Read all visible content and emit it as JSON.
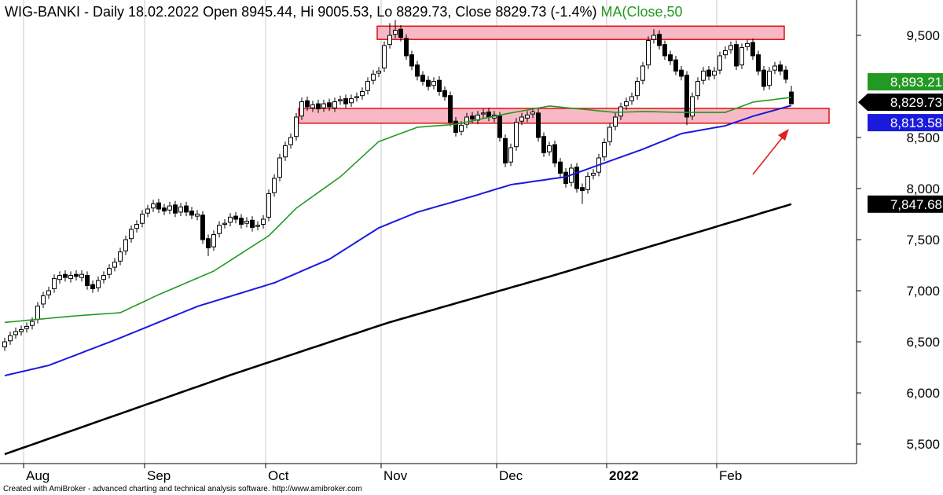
{
  "chart_data": {
    "type": "candlestick",
    "title": "WIG-BANKI - Daily 18.02.2022 Open 8945.44, Hi 9005.53, Lo 8829.73, Close 8829.73 (-1.4%) ",
    "title_ma": "MA(Close,50",
    "footer": "Created with AmiBroker - advanced charting and technical analysis software. http://www.amibroker.com",
    "categories": [
      null,
      null,
      null,
      null,
      "Aug",
      null,
      null,
      null,
      null,
      null,
      null,
      null,
      null,
      null,
      null,
      null,
      null,
      null,
      null,
      null,
      null,
      null,
      null,
      null,
      null,
      null,
      "Sep",
      null,
      null,
      null,
      null,
      null,
      null,
      null,
      null,
      null,
      null,
      null,
      null,
      null,
      null,
      null,
      null,
      null,
      null,
      null,
      null,
      null,
      "Oct",
      null,
      null,
      null,
      null,
      null,
      null,
      null,
      null,
      null,
      null,
      null,
      null,
      null,
      null,
      null,
      null,
      null,
      null,
      null,
      null,
      "Nov",
      null,
      null,
      null,
      null,
      null,
      null,
      null,
      null,
      null,
      null,
      null,
      null,
      null,
      null,
      null,
      null,
      null,
      null,
      null,
      null,
      "Dec",
      null,
      null,
      null,
      null,
      null,
      null,
      null,
      null,
      null,
      null,
      null,
      null,
      null,
      null,
      null,
      null,
      null,
      null,
      null,
      "2022",
      null,
      null,
      null,
      null,
      null,
      null,
      null,
      null,
      null,
      null,
      null,
      null,
      null,
      null,
      null,
      null,
      null,
      null,
      null,
      "Feb",
      null,
      null,
      null,
      null,
      null,
      null,
      null,
      null,
      null,
      null,
      null,
      null,
      null
    ],
    "open": [
      6450,
      6510,
      6570,
      6600,
      6630,
      6660,
      6720,
      6870,
      6960,
      7020,
      7110,
      7160,
      7120,
      7160,
      7130,
      7150,
      7060,
      7030,
      7110,
      7160,
      7230,
      7290,
      7390,
      7510,
      7610,
      7660,
      7760,
      7810,
      7860,
      7810,
      7790,
      7840,
      7770,
      7830,
      7780,
      7730,
      7740,
      7510,
      7430,
      7560,
      7650,
      7670,
      7730,
      7710,
      7660,
      7690,
      7630,
      7650,
      7720,
      7960,
      8110,
      8310,
      8430,
      8510,
      8710,
      8860,
      8790,
      8830,
      8790,
      8840,
      8790,
      8860,
      8880,
      8840,
      8890,
      8910,
      8960,
      9060,
      9130,
      9180,
      9410,
      9510,
      9560,
      9470,
      9310,
      9210,
      9110,
      9060,
      9010,
      9060,
      8960,
      8910,
      8660,
      8560,
      8630,
      8710,
      8670,
      8730,
      8750,
      8690,
      8710,
      8490,
      8260,
      8410,
      8660,
      8690,
      8730,
      8740,
      8510,
      8360,
      8430,
      8260,
      8160,
      8060,
      8210,
      8010,
      7990,
      8130,
      8160,
      8310,
      8460,
      8610,
      8710,
      8810,
      8860,
      8910,
      9060,
      9210,
      9460,
      9510,
      9410,
      9310,
      9260,
      9160,
      9110,
      8710,
      8910,
      9060,
      9160,
      9110,
      9160,
      9310,
      9360,
      9410,
      9210,
      9390,
      9430,
      9310,
      9160,
      9010,
      9160,
      9210,
      9160,
      8945.44
    ],
    "high": [
      6540,
      6600,
      6640,
      6660,
      6690,
      6740,
      6890,
      6990,
      7040,
      7160,
      7190,
      7200,
      7190,
      7200,
      7200,
      7190,
      7100,
      7140,
      7190,
      7260,
      7320,
      7420,
      7540,
      7640,
      7690,
      7790,
      7840,
      7890,
      7900,
      7850,
      7870,
      7880,
      7860,
      7870,
      7820,
      7790,
      7780,
      7550,
      7590,
      7680,
      7700,
      7760,
      7770,
      7750,
      7720,
      7730,
      7680,
      7740,
      7990,
      8140,
      8340,
      8460,
      8540,
      8740,
      8890,
      8900,
      8860,
      8870,
      8870,
      8880,
      8890,
      8910,
      8920,
      8920,
      8940,
      8990,
      9090,
      9160,
      9190,
      9440,
      9620,
      9650,
      9600,
      9510,
      9350,
      9250,
      9150,
      9100,
      9090,
      9100,
      9000,
      8950,
      8700,
      8660,
      8740,
      8750,
      8760,
      8780,
      8790,
      8760,
      8750,
      8530,
      8440,
      8690,
      8740,
      8760,
      8790,
      8780,
      8550,
      8460,
      8470,
      8300,
      8200,
      8240,
      8250,
      8050,
      8160,
      8190,
      8340,
      8490,
      8640,
      8740,
      8840,
      8890,
      8940,
      9090,
      9240,
      9490,
      9560,
      9550,
      9450,
      9350,
      9300,
      9200,
      9150,
      8940,
      9090,
      9190,
      9200,
      9190,
      9340,
      9390,
      9440,
      9450,
      9420,
      9460,
      9470,
      9350,
      9200,
      9190,
      9240,
      9250,
      9200,
      9005.53
    ],
    "low": [
      6410,
      6470,
      6530,
      6560,
      6590,
      6620,
      6680,
      6830,
      6920,
      6980,
      7070,
      7090,
      7080,
      7100,
      7090,
      7010,
      6980,
      6990,
      7070,
      7120,
      7190,
      7250,
      7350,
      7470,
      7570,
      7620,
      7720,
      7770,
      7760,
      7740,
      7750,
      7720,
      7730,
      7730,
      7700,
      7690,
      7460,
      7340,
      7390,
      7520,
      7610,
      7630,
      7660,
      7610,
      7620,
      7580,
      7590,
      7610,
      7680,
      7920,
      8070,
      8270,
      8390,
      8470,
      8670,
      8760,
      8750,
      8740,
      8750,
      8760,
      8750,
      8820,
      8790,
      8800,
      8850,
      8870,
      8920,
      9020,
      9090,
      9140,
      9370,
      9470,
      9440,
      9260,
      9160,
      9060,
      9010,
      8960,
      8970,
      8910,
      8860,
      8610,
      8510,
      8520,
      8590,
      8640,
      8630,
      8690,
      8660,
      8650,
      8460,
      8210,
      8220,
      8370,
      8620,
      8650,
      8690,
      8460,
      8310,
      8320,
      8210,
      8110,
      8010,
      8020,
      7960,
      7850,
      7950,
      8090,
      8120,
      8270,
      8420,
      8570,
      8670,
      8770,
      8820,
      8870,
      9020,
      9170,
      9420,
      9360,
      9260,
      9210,
      9110,
      9060,
      8620,
      8670,
      8870,
      9020,
      9060,
      9070,
      9120,
      9270,
      9320,
      9160,
      9170,
      9350,
      9260,
      9110,
      8960,
      8970,
      9120,
      9110,
      9030,
      8829.73
    ],
    "close": [
      6500,
      6560,
      6600,
      6620,
      6650,
      6700,
      6850,
      6950,
      7000,
      7120,
      7150,
      7130,
      7150,
      7140,
      7160,
      7050,
      7020,
      7100,
      7150,
      7220,
      7280,
      7380,
      7500,
      7600,
      7650,
      7750,
      7800,
      7850,
      7800,
      7780,
      7830,
      7760,
      7820,
      7770,
      7740,
      7750,
      7500,
      7420,
      7550,
      7640,
      7660,
      7720,
      7700,
      7650,
      7680,
      7620,
      7640,
      7700,
      7950,
      8100,
      8300,
      8420,
      8500,
      8700,
      8850,
      8800,
      8820,
      8780,
      8830,
      8800,
      8850,
      8870,
      8830,
      8880,
      8900,
      8950,
      9050,
      9120,
      9150,
      9400,
      9500,
      9550,
      9480,
      9300,
      9200,
      9100,
      9050,
      9000,
      9050,
      8950,
      8900,
      8650,
      8550,
      8620,
      8700,
      8680,
      8720,
      8740,
      8700,
      8720,
      8500,
      8250,
      8400,
      8650,
      8700,
      8720,
      8750,
      8500,
      8350,
      8420,
      8250,
      8150,
      8050,
      8200,
      8000,
      7980,
      8120,
      8150,
      8300,
      8450,
      8600,
      8700,
      8800,
      8850,
      8900,
      9050,
      9200,
      9450,
      9500,
      9400,
      9300,
      9250,
      9150,
      9100,
      8700,
      8900,
      9050,
      9150,
      9100,
      9150,
      9300,
      9350,
      9400,
      9200,
      9380,
      9420,
      9300,
      9150,
      9000,
      9150,
      9200,
      9150,
      9070,
      8829.73
    ],
    "close_label": {
      "value": 8829.73,
      "label": "8,829.73"
    },
    "series": [
      {
        "color": "#229922",
        "width": 1.6,
        "end_label": {
          "value": 8893.21,
          "label": "8,893.21"
        },
        "values": [
          6690,
          6695,
          6700,
          6705,
          6710,
          6715,
          6720,
          6725,
          6730,
          6735,
          6740,
          6745,
          6750,
          6754,
          6758,
          6762,
          6766,
          6770,
          6774,
          6777,
          6781,
          6785,
          6810,
          6836,
          6861,
          6886,
          6911,
          6937,
          6962,
          6985,
          7008,
          7031,
          7054,
          7077,
          7100,
          7123,
          7146,
          7169,
          7192,
          7227,
          7261,
          7296,
          7330,
          7365,
          7400,
          7434,
          7469,
          7503,
          7538,
          7592,
          7646,
          7700,
          7754,
          7808,
          7846,
          7885,
          7923,
          7962,
          8000,
          8038,
          8077,
          8115,
          8164,
          8214,
          8263,
          8312,
          8362,
          8411,
          8460,
          8480,
          8500,
          8520,
          8540,
          8560,
          8580,
          8600,
          8604,
          8609,
          8613,
          8617,
          8621,
          8626,
          8630,
          8641,
          8652,
          8663,
          8674,
          8686,
          8697,
          8708,
          8719,
          8730,
          8740,
          8750,
          8759,
          8769,
          8779,
          8789,
          8798,
          8808,
          8803,
          8798,
          8792,
          8787,
          8782,
          8777,
          8772,
          8767,
          8761,
          8756,
          8751,
          8746,
          8748,
          8749,
          8751,
          8752,
          8754,
          8753,
          8752,
          8751,
          8749,
          8748,
          8747,
          8746,
          8746,
          8746,
          8746,
          8746,
          8746,
          8746,
          8746,
          8746,
          8766,
          8786,
          8806,
          8826,
          8846,
          8853,
          8860,
          8866,
          8873,
          8880,
          8886,
          8893.21
        ]
      },
      {
        "color": "#1a1adc",
        "width": 2,
        "end_label": {
          "value": 8813.58,
          "label": "8,813.58"
        },
        "values": [
          6169,
          6182,
          6194,
          6207,
          6219,
          6232,
          6244,
          6257,
          6269,
          6290,
          6310,
          6331,
          6352,
          6372,
          6393,
          6414,
          6434,
          6455,
          6476,
          6496,
          6517,
          6538,
          6560,
          6582,
          6604,
          6626,
          6648,
          6670,
          6692,
          6714,
          6736,
          6758,
          6780,
          6802,
          6824,
          6846,
          6863,
          6879,
          6896,
          6912,
          6929,
          6945,
          6962,
          6978,
          6995,
          7011,
          7028,
          7044,
          7061,
          7077,
          7100,
          7123,
          7146,
          7169,
          7193,
          7216,
          7239,
          7262,
          7285,
          7308,
          7342,
          7376,
          7410,
          7444,
          7479,
          7513,
          7547,
          7581,
          7615,
          7637,
          7659,
          7681,
          7703,
          7725,
          7747,
          7769,
          7784,
          7800,
          7815,
          7831,
          7846,
          7861,
          7877,
          7892,
          7908,
          7923,
          7939,
          7956,
          7972,
          7989,
          8005,
          8021,
          8038,
          8046,
          8053,
          8061,
          8069,
          8077,
          8084,
          8092,
          8100,
          8107,
          8115,
          8134,
          8154,
          8173,
          8192,
          8212,
          8231,
          8250,
          8270,
          8289,
          8308,
          8327,
          8347,
          8366,
          8385,
          8407,
          8429,
          8451,
          8472,
          8494,
          8516,
          8538,
          8548,
          8557,
          8567,
          8577,
          8586,
          8596,
          8605,
          8615,
          8634,
          8652,
          8671,
          8689,
          8708,
          8723,
          8738,
          8753,
          8768,
          8783,
          8798,
          8813.58
        ]
      },
      {
        "color": "#000000",
        "width": 2.6,
        "end_label": {
          "value": 7847.68,
          "label": "7,847.68"
        },
        "values": [
          5400,
          5419,
          5438,
          5457,
          5475,
          5494,
          5513,
          5532,
          5551,
          5570,
          5589,
          5608,
          5626,
          5645,
          5664,
          5683,
          5702,
          5721,
          5740,
          5759,
          5777,
          5796,
          5815,
          5834,
          5853,
          5872,
          5891,
          5909,
          5928,
          5947,
          5966,
          5985,
          6004,
          6023,
          6042,
          6060,
          6079,
          6098,
          6117,
          6136,
          6155,
          6174,
          6192,
          6210,
          6228,
          6246,
          6264,
          6282,
          6299,
          6317,
          6335,
          6353,
          6371,
          6389,
          6407,
          6425,
          6443,
          6460,
          6478,
          6496,
          6514,
          6532,
          6550,
          6568,
          6585,
          6603,
          6621,
          6639,
          6657,
          6674,
          6692,
          6707,
          6723,
          6738,
          6754,
          6769,
          6784,
          6800,
          6815,
          6831,
          6846,
          6861,
          6877,
          6892,
          6907,
          6923,
          6938,
          6954,
          6969,
          6984,
          7000,
          7015,
          7031,
          7046,
          7061,
          7077,
          7092,
          7107,
          7123,
          7138,
          7154,
          7170,
          7186,
          7202,
          7218,
          7235,
          7251,
          7267,
          7283,
          7299,
          7315,
          7331,
          7347,
          7364,
          7380,
          7396,
          7412,
          7428,
          7444,
          7460,
          7476,
          7493,
          7509,
          7525,
          7541,
          7557,
          7573,
          7589,
          7605,
          7621,
          7638,
          7654,
          7670,
          7686,
          7702,
          7718,
          7734,
          7750,
          7767,
          7783,
          7799,
          7815,
          7831,
          7847.68
        ]
      }
    ],
    "ylim": [
      5308,
      9846
    ],
    "yticks": [
      {
        "value": 9500,
        "label": "9,500"
      },
      {
        "value": 8500,
        "label": "8,500"
      },
      {
        "value": 8000,
        "label": "8,000"
      },
      {
        "value": 7500,
        "label": "7,500"
      },
      {
        "value": 7000,
        "label": "7,000"
      },
      {
        "value": 6500,
        "label": "6,500"
      },
      {
        "value": 6000,
        "label": "6,000"
      },
      {
        "value": 5500,
        "label": "5,500"
      }
    ],
    "zones": [
      {
        "low": 9460,
        "high": 9590
      },
      {
        "low": 8640,
        "high": 8785
      }
    ]
  }
}
